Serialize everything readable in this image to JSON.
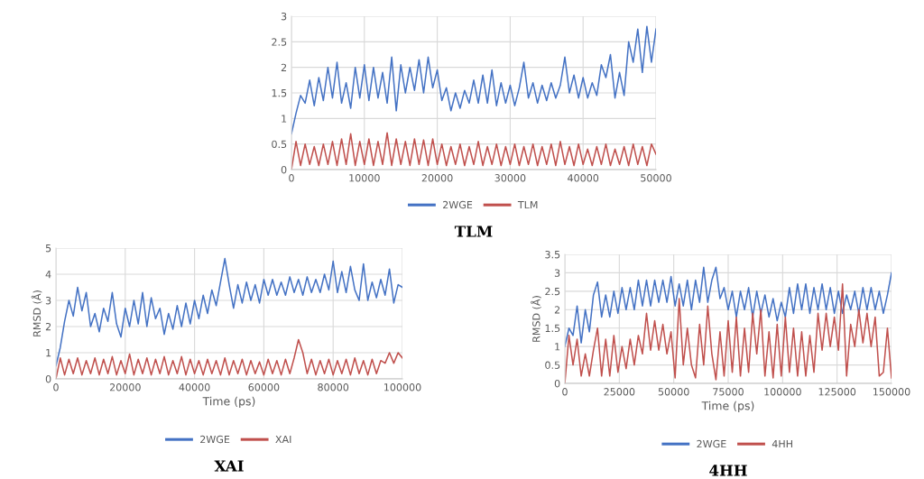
{
  "chart_data": [
    {
      "type": "line",
      "title": "TLM",
      "legend": "bottom",
      "grid": true,
      "x": [
        0,
        625,
        1250,
        1875,
        2500,
        3125,
        3750,
        4375,
        5000,
        5625,
        6250,
        6875,
        7500,
        8125,
        8750,
        9375,
        10000,
        10625,
        11250,
        11875,
        12500,
        13125,
        13750,
        14375,
        15000,
        15625,
        16250,
        16875,
        17500,
        18125,
        18750,
        19375,
        20000,
        20625,
        21250,
        21875,
        22500,
        23125,
        23750,
        24375,
        25000,
        25625,
        26250,
        26875,
        27500,
        28125,
        28750,
        29375,
        30000,
        30625,
        31250,
        31875,
        32500,
        33125,
        33750,
        34375,
        35000,
        35625,
        36250,
        36875,
        37500,
        38125,
        38750,
        39375,
        40000,
        40625,
        41250,
        41875,
        42500,
        43125,
        43750,
        44375,
        45000,
        45625,
        46250,
        46875,
        47500,
        48125,
        48750,
        49375,
        50000
      ],
      "series": [
        {
          "name": "2WGE",
          "color": "#4472c4",
          "values": [
            0.7,
            1.1,
            1.45,
            1.3,
            1.75,
            1.25,
            1.8,
            1.35,
            2.0,
            1.4,
            2.1,
            1.3,
            1.7,
            1.2,
            2.0,
            1.4,
            2.05,
            1.35,
            2.0,
            1.4,
            1.9,
            1.3,
            2.2,
            1.15,
            2.05,
            1.5,
            2.0,
            1.55,
            2.15,
            1.5,
            2.2,
            1.6,
            1.95,
            1.35,
            1.6,
            1.15,
            1.5,
            1.2,
            1.55,
            1.3,
            1.75,
            1.3,
            1.85,
            1.3,
            1.95,
            1.25,
            1.7,
            1.3,
            1.65,
            1.25,
            1.6,
            2.1,
            1.4,
            1.7,
            1.3,
            1.65,
            1.35,
            1.7,
            1.4,
            1.65,
            2.2,
            1.5,
            1.85,
            1.4,
            1.8,
            1.4,
            1.7,
            1.45,
            2.05,
            1.8,
            2.25,
            1.4,
            1.9,
            1.45,
            2.5,
            2.1,
            2.75,
            1.9,
            2.8,
            2.1,
            2.75
          ]
        },
        {
          "name": "TLM",
          "color": "#c0504d",
          "values": [
            0,
            0.55,
            0.08,
            0.5,
            0.1,
            0.45,
            0.08,
            0.5,
            0.1,
            0.55,
            0.08,
            0.6,
            0.1,
            0.7,
            0.08,
            0.55,
            0.1,
            0.6,
            0.08,
            0.55,
            0.1,
            0.72,
            0.08,
            0.6,
            0.1,
            0.55,
            0.08,
            0.6,
            0.1,
            0.58,
            0.08,
            0.6,
            0.1,
            0.5,
            0.08,
            0.45,
            0.1,
            0.5,
            0.08,
            0.45,
            0.1,
            0.55,
            0.08,
            0.45,
            0.1,
            0.5,
            0.08,
            0.45,
            0.1,
            0.5,
            0.08,
            0.45,
            0.1,
            0.5,
            0.08,
            0.45,
            0.1,
            0.5,
            0.08,
            0.55,
            0.1,
            0.45,
            0.08,
            0.5,
            0.1,
            0.4,
            0.08,
            0.45,
            0.1,
            0.5,
            0.08,
            0.4,
            0.1,
            0.45,
            0.08,
            0.5,
            0.1,
            0.45,
            0.08,
            0.5,
            0.3
          ]
        }
      ],
      "xlim": [
        0,
        50000
      ],
      "xticks": [
        0,
        10000,
        20000,
        30000,
        40000,
        50000
      ],
      "ylim": [
        0,
        3
      ],
      "yticks": [
        0,
        0.5,
        1,
        1.5,
        2,
        2.5,
        3
      ]
    },
    {
      "type": "line",
      "title": "XAI",
      "xlabel": "Time (ps)",
      "ylabel": "RMSD (Å)",
      "legend": "bottom",
      "grid": true,
      "x": [
        0,
        1250,
        2500,
        3750,
        5000,
        6250,
        7500,
        8750,
        10000,
        11250,
        12500,
        13750,
        15000,
        16250,
        17500,
        18750,
        20000,
        21250,
        22500,
        23750,
        25000,
        26250,
        27500,
        28750,
        30000,
        31250,
        32500,
        33750,
        35000,
        36250,
        37500,
        38750,
        40000,
        41250,
        42500,
        43750,
        45000,
        46250,
        47500,
        48750,
        50000,
        51250,
        52500,
        53750,
        55000,
        56250,
        57500,
        58750,
        60000,
        61250,
        62500,
        63750,
        65000,
        66250,
        67500,
        68750,
        70000,
        71250,
        72500,
        73750,
        75000,
        76250,
        77500,
        78750,
        80000,
        81250,
        82500,
        83750,
        85000,
        86250,
        87500,
        88750,
        90000,
        91250,
        92500,
        93750,
        95000,
        96250,
        97500,
        98750,
        100000
      ],
      "series": [
        {
          "name": "2WGE",
          "color": "#4472c4",
          "values": [
            0.5,
            1.2,
            2.2,
            3.0,
            2.4,
            3.5,
            2.6,
            3.3,
            2.0,
            2.5,
            1.8,
            2.7,
            2.2,
            3.3,
            2.1,
            1.6,
            2.7,
            2.0,
            3.0,
            2.1,
            3.3,
            2.0,
            3.1,
            2.3,
            2.7,
            1.7,
            2.5,
            1.9,
            2.8,
            2.0,
            2.9,
            2.1,
            3.0,
            2.3,
            3.2,
            2.5,
            3.4,
            2.8,
            3.7,
            4.6,
            3.6,
            2.7,
            3.6,
            2.9,
            3.7,
            3.0,
            3.6,
            2.9,
            3.8,
            3.2,
            3.8,
            3.2,
            3.7,
            3.2,
            3.9,
            3.3,
            3.8,
            3.2,
            3.9,
            3.3,
            3.8,
            3.3,
            4.0,
            3.4,
            4.5,
            3.3,
            4.1,
            3.3,
            4.3,
            3.4,
            3.0,
            4.4,
            3.0,
            3.7,
            3.1,
            3.8,
            3.2,
            4.2,
            2.9,
            3.6,
            3.5
          ]
        },
        {
          "name": "XAI",
          "color": "#c0504d",
          "values": [
            0,
            0.8,
            0.15,
            0.75,
            0.2,
            0.8,
            0.15,
            0.7,
            0.2,
            0.8,
            0.15,
            0.75,
            0.2,
            0.85,
            0.15,
            0.7,
            0.2,
            0.95,
            0.15,
            0.75,
            0.2,
            0.8,
            0.15,
            0.75,
            0.2,
            0.85,
            0.15,
            0.7,
            0.2,
            0.85,
            0.15,
            0.75,
            0.2,
            0.7,
            0.15,
            0.75,
            0.2,
            0.7,
            0.15,
            0.8,
            0.15,
            0.7,
            0.2,
            0.75,
            0.15,
            0.7,
            0.2,
            0.65,
            0.15,
            0.75,
            0.2,
            0.7,
            0.15,
            0.75,
            0.2,
            0.8,
            1.5,
            1.0,
            0.2,
            0.75,
            0.15,
            0.7,
            0.2,
            0.75,
            0.15,
            0.7,
            0.2,
            0.75,
            0.15,
            0.8,
            0.2,
            0.7,
            0.15,
            0.75,
            0.2,
            0.7,
            0.6,
            1.0,
            0.6,
            1.0,
            0.8
          ]
        }
      ],
      "xlim": [
        0,
        100000
      ],
      "xticks": [
        0,
        20000,
        40000,
        60000,
        80000,
        100000
      ],
      "ylim": [
        0,
        5
      ],
      "yticks": [
        0,
        1,
        2,
        3,
        4,
        5
      ]
    },
    {
      "type": "line",
      "title": "4HH",
      "xlabel": "Time (ps)",
      "ylabel": "RMSD (Å)",
      "legend": "bottom",
      "grid": true,
      "x": [
        0,
        1875,
        3750,
        5625,
        7500,
        9375,
        11250,
        13125,
        15000,
        16875,
        18750,
        20625,
        22500,
        24375,
        26250,
        28125,
        30000,
        31875,
        33750,
        35625,
        37500,
        39375,
        41250,
        43125,
        45000,
        46875,
        48750,
        50625,
        52500,
        54375,
        56250,
        58125,
        60000,
        61875,
        63750,
        65625,
        67500,
        69375,
        71250,
        73125,
        75000,
        76875,
        78750,
        80625,
        82500,
        84375,
        86250,
        88125,
        90000,
        91875,
        93750,
        95625,
        97500,
        99375,
        101250,
        103125,
        105000,
        106875,
        108750,
        110625,
        112500,
        114375,
        116250,
        118125,
        120000,
        121875,
        123750,
        125625,
        127500,
        129375,
        131250,
        133125,
        135000,
        136875,
        138750,
        140625,
        142500,
        144375,
        146250,
        148125,
        150000
      ],
      "series": [
        {
          "name": "2WGE",
          "color": "#4472c4",
          "values": [
            1.0,
            1.5,
            1.3,
            2.1,
            1.1,
            2.0,
            1.4,
            2.4,
            2.75,
            1.8,
            2.4,
            1.8,
            2.5,
            1.9,
            2.6,
            2.0,
            2.6,
            2.0,
            2.8,
            2.1,
            2.8,
            2.1,
            2.8,
            2.2,
            2.8,
            2.2,
            2.9,
            2.1,
            2.7,
            2.1,
            2.8,
            2.0,
            2.8,
            2.2,
            3.15,
            2.2,
            2.8,
            3.15,
            2.3,
            2.6,
            2.0,
            2.5,
            1.8,
            2.5,
            2.0,
            2.6,
            1.8,
            2.5,
            1.9,
            2.4,
            1.8,
            2.3,
            1.7,
            2.2,
            1.8,
            2.6,
            1.9,
            2.7,
            2.0,
            2.7,
            1.9,
            2.6,
            2.0,
            2.7,
            2.0,
            2.6,
            1.9,
            2.5,
            1.9,
            2.4,
            2.0,
            2.5,
            1.9,
            2.6,
            2.0,
            2.6,
            2.0,
            2.5,
            1.9,
            2.4,
            3.0
          ]
        },
        {
          "name": "4HH",
          "color": "#c0504d",
          "values": [
            0,
            1.3,
            0.5,
            1.2,
            0.2,
            0.8,
            0.2,
            0.9,
            1.5,
            0.2,
            1.2,
            0.2,
            1.3,
            0.3,
            1.0,
            0.4,
            1.2,
            0.5,
            1.3,
            0.8,
            1.9,
            0.9,
            1.7,
            0.9,
            1.6,
            0.8,
            1.4,
            0.15,
            2.3,
            0.5,
            1.5,
            0.5,
            0.15,
            1.6,
            0.5,
            2.1,
            0.8,
            0.1,
            1.4,
            0.2,
            1.7,
            0.3,
            1.8,
            0.2,
            1.5,
            0.3,
            1.9,
            0.8,
            2.0,
            0.2,
            1.4,
            0.15,
            1.6,
            0.2,
            1.8,
            0.3,
            1.5,
            0.2,
            1.4,
            0.2,
            1.3,
            0.3,
            1.9,
            0.9,
            1.9,
            1.0,
            1.8,
            0.9,
            2.7,
            0.2,
            1.6,
            1.0,
            2.0,
            1.1,
            1.9,
            1.0,
            1.8,
            0.2,
            0.3,
            1.5,
            0.15
          ]
        }
      ],
      "xlim": [
        0,
        150000
      ],
      "xticks": [
        0,
        25000,
        50000,
        75000,
        100000,
        125000,
        150000
      ],
      "ylim": [
        0,
        3.5
      ],
      "yticks": [
        0,
        0.5,
        1,
        1.5,
        2,
        2.5,
        3,
        3.5
      ]
    }
  ]
}
